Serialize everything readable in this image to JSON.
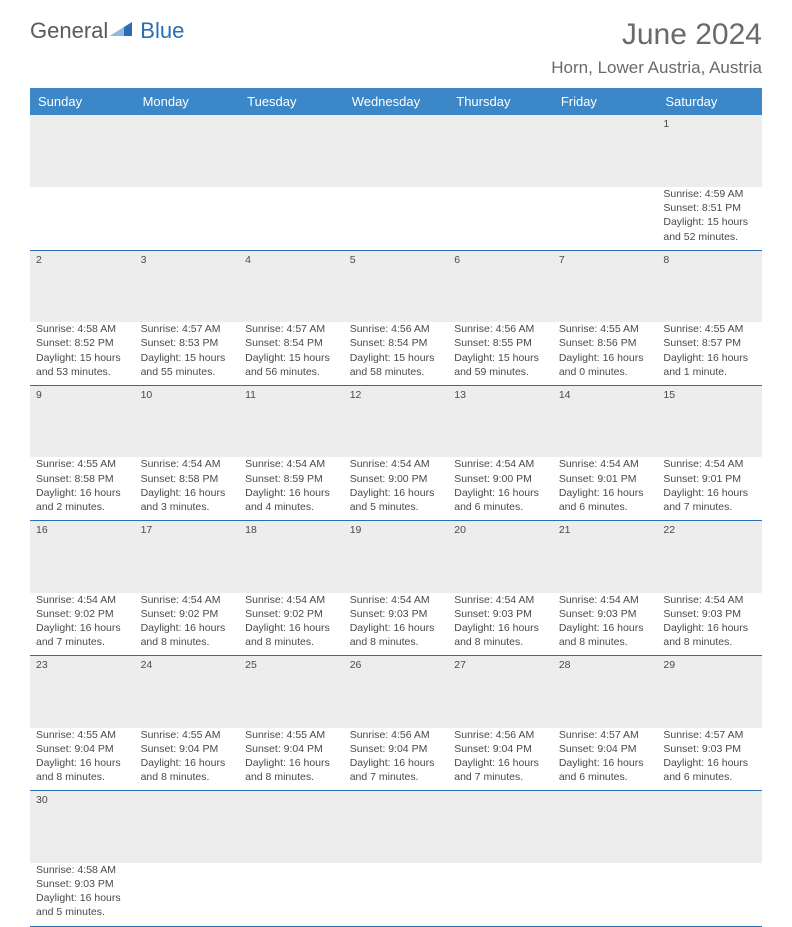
{
  "logo": {
    "part1": "General",
    "part2": "Blue"
  },
  "title": "June 2024",
  "location": "Horn, Lower Austria, Austria",
  "colors": {
    "header_bg": "#3b87c8",
    "header_text": "#ffffff",
    "daynum_bg": "#ededed",
    "text": "#4a4a4a",
    "rule": "#2a6db5",
    "title_text": "#6a6a6a",
    "logo_gray": "#5a5a5a",
    "logo_blue": "#2a6db5"
  },
  "weekdays": [
    "Sunday",
    "Monday",
    "Tuesday",
    "Wednesday",
    "Thursday",
    "Friday",
    "Saturday"
  ],
  "weeks": [
    [
      null,
      null,
      null,
      null,
      null,
      null,
      {
        "n": "1",
        "sunrise": "Sunrise: 4:59 AM",
        "sunset": "Sunset: 8:51 PM",
        "daylight": "Daylight: 15 hours and 52 minutes."
      }
    ],
    [
      {
        "n": "2",
        "sunrise": "Sunrise: 4:58 AM",
        "sunset": "Sunset: 8:52 PM",
        "daylight": "Daylight: 15 hours and 53 minutes."
      },
      {
        "n": "3",
        "sunrise": "Sunrise: 4:57 AM",
        "sunset": "Sunset: 8:53 PM",
        "daylight": "Daylight: 15 hours and 55 minutes."
      },
      {
        "n": "4",
        "sunrise": "Sunrise: 4:57 AM",
        "sunset": "Sunset: 8:54 PM",
        "daylight": "Daylight: 15 hours and 56 minutes."
      },
      {
        "n": "5",
        "sunrise": "Sunrise: 4:56 AM",
        "sunset": "Sunset: 8:54 PM",
        "daylight": "Daylight: 15 hours and 58 minutes."
      },
      {
        "n": "6",
        "sunrise": "Sunrise: 4:56 AM",
        "sunset": "Sunset: 8:55 PM",
        "daylight": "Daylight: 15 hours and 59 minutes."
      },
      {
        "n": "7",
        "sunrise": "Sunrise: 4:55 AM",
        "sunset": "Sunset: 8:56 PM",
        "daylight": "Daylight: 16 hours and 0 minutes."
      },
      {
        "n": "8",
        "sunrise": "Sunrise: 4:55 AM",
        "sunset": "Sunset: 8:57 PM",
        "daylight": "Daylight: 16 hours and 1 minute."
      }
    ],
    [
      {
        "n": "9",
        "sunrise": "Sunrise: 4:55 AM",
        "sunset": "Sunset: 8:58 PM",
        "daylight": "Daylight: 16 hours and 2 minutes."
      },
      {
        "n": "10",
        "sunrise": "Sunrise: 4:54 AM",
        "sunset": "Sunset: 8:58 PM",
        "daylight": "Daylight: 16 hours and 3 minutes."
      },
      {
        "n": "11",
        "sunrise": "Sunrise: 4:54 AM",
        "sunset": "Sunset: 8:59 PM",
        "daylight": "Daylight: 16 hours and 4 minutes."
      },
      {
        "n": "12",
        "sunrise": "Sunrise: 4:54 AM",
        "sunset": "Sunset: 9:00 PM",
        "daylight": "Daylight: 16 hours and 5 minutes."
      },
      {
        "n": "13",
        "sunrise": "Sunrise: 4:54 AM",
        "sunset": "Sunset: 9:00 PM",
        "daylight": "Daylight: 16 hours and 6 minutes."
      },
      {
        "n": "14",
        "sunrise": "Sunrise: 4:54 AM",
        "sunset": "Sunset: 9:01 PM",
        "daylight": "Daylight: 16 hours and 6 minutes."
      },
      {
        "n": "15",
        "sunrise": "Sunrise: 4:54 AM",
        "sunset": "Sunset: 9:01 PM",
        "daylight": "Daylight: 16 hours and 7 minutes."
      }
    ],
    [
      {
        "n": "16",
        "sunrise": "Sunrise: 4:54 AM",
        "sunset": "Sunset: 9:02 PM",
        "daylight": "Daylight: 16 hours and 7 minutes."
      },
      {
        "n": "17",
        "sunrise": "Sunrise: 4:54 AM",
        "sunset": "Sunset: 9:02 PM",
        "daylight": "Daylight: 16 hours and 8 minutes."
      },
      {
        "n": "18",
        "sunrise": "Sunrise: 4:54 AM",
        "sunset": "Sunset: 9:02 PM",
        "daylight": "Daylight: 16 hours and 8 minutes."
      },
      {
        "n": "19",
        "sunrise": "Sunrise: 4:54 AM",
        "sunset": "Sunset: 9:03 PM",
        "daylight": "Daylight: 16 hours and 8 minutes."
      },
      {
        "n": "20",
        "sunrise": "Sunrise: 4:54 AM",
        "sunset": "Sunset: 9:03 PM",
        "daylight": "Daylight: 16 hours and 8 minutes."
      },
      {
        "n": "21",
        "sunrise": "Sunrise: 4:54 AM",
        "sunset": "Sunset: 9:03 PM",
        "daylight": "Daylight: 16 hours and 8 minutes."
      },
      {
        "n": "22",
        "sunrise": "Sunrise: 4:54 AM",
        "sunset": "Sunset: 9:03 PM",
        "daylight": "Daylight: 16 hours and 8 minutes."
      }
    ],
    [
      {
        "n": "23",
        "sunrise": "Sunrise: 4:55 AM",
        "sunset": "Sunset: 9:04 PM",
        "daylight": "Daylight: 16 hours and 8 minutes."
      },
      {
        "n": "24",
        "sunrise": "Sunrise: 4:55 AM",
        "sunset": "Sunset: 9:04 PM",
        "daylight": "Daylight: 16 hours and 8 minutes."
      },
      {
        "n": "25",
        "sunrise": "Sunrise: 4:55 AM",
        "sunset": "Sunset: 9:04 PM",
        "daylight": "Daylight: 16 hours and 8 minutes."
      },
      {
        "n": "26",
        "sunrise": "Sunrise: 4:56 AM",
        "sunset": "Sunset: 9:04 PM",
        "daylight": "Daylight: 16 hours and 7 minutes."
      },
      {
        "n": "27",
        "sunrise": "Sunrise: 4:56 AM",
        "sunset": "Sunset: 9:04 PM",
        "daylight": "Daylight: 16 hours and 7 minutes."
      },
      {
        "n": "28",
        "sunrise": "Sunrise: 4:57 AM",
        "sunset": "Sunset: 9:04 PM",
        "daylight": "Daylight: 16 hours and 6 minutes."
      },
      {
        "n": "29",
        "sunrise": "Sunrise: 4:57 AM",
        "sunset": "Sunset: 9:03 PM",
        "daylight": "Daylight: 16 hours and 6 minutes."
      }
    ],
    [
      {
        "n": "30",
        "sunrise": "Sunrise: 4:58 AM",
        "sunset": "Sunset: 9:03 PM",
        "daylight": "Daylight: 16 hours and 5 minutes."
      },
      null,
      null,
      null,
      null,
      null,
      null
    ]
  ]
}
